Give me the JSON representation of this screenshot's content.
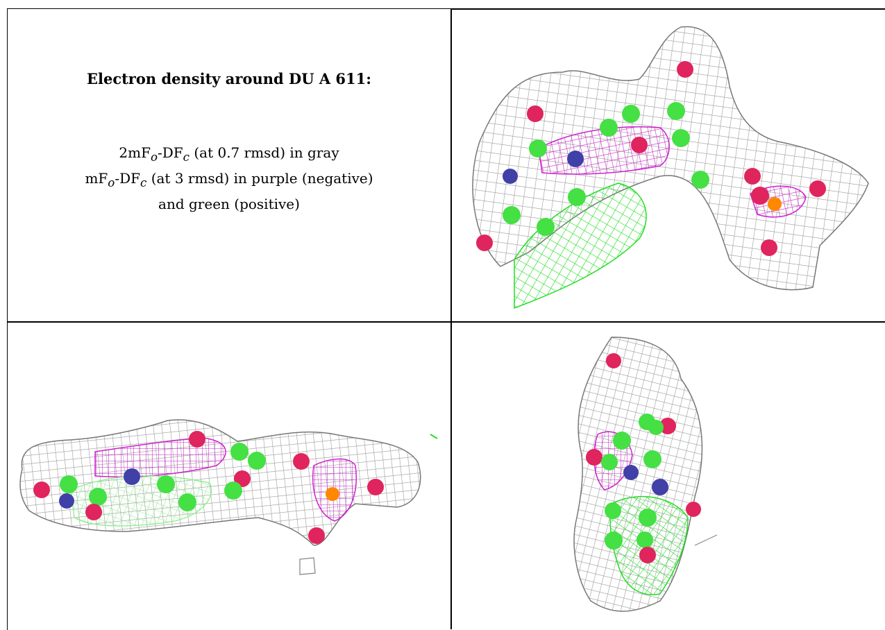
{
  "caption": {
    "title": "Electron density around DU A 611:",
    "line1": "2mFo-DFc (at 0.7 rmsd) in gray",
    "line2": "mFo-DFc (at 3 rmsd) in purple (negative)",
    "line3": "and green (positive)"
  },
  "colors": {
    "gray_mesh": "#9a9a9a",
    "purple_mesh": "#cc22cc",
    "green_mesh": "#22dd22",
    "atom_red": "#e0245e",
    "atom_green": "#44e044",
    "atom_blue": "#4040a8",
    "atom_orange": "#ff8800"
  }
}
